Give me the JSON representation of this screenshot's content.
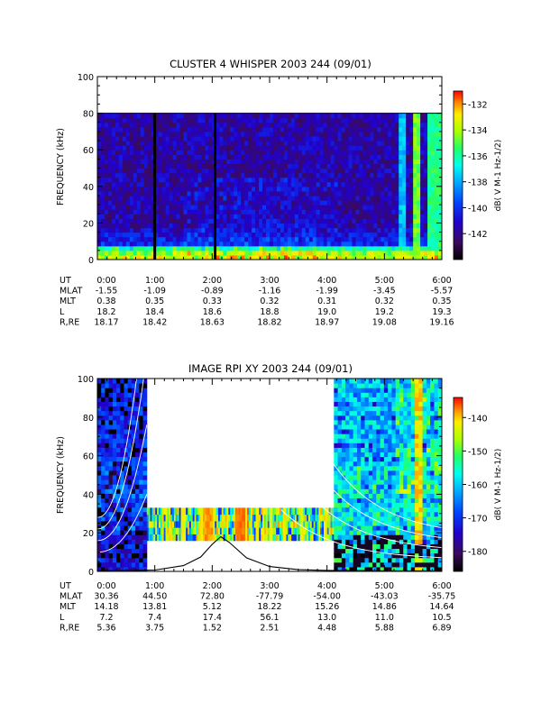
{
  "chart_data": [
    {
      "type": "heatmap",
      "title": "CLUSTER 4 WHISPER 2003 244 (09/01)",
      "ylabel": "FREQUENCY (kHz)",
      "ylim": [
        0,
        100
      ],
      "yticks": [
        "0",
        "20",
        "40",
        "60",
        "80",
        "100"
      ],
      "data_ylim": [
        0,
        80
      ],
      "xlim_hours": [
        0,
        6
      ],
      "colorbar": {
        "label": "dB( V M⁻¹ Hz⁻¹ᐟ²)",
        "label_plain": "dB( V M-1 Hz-1/2)",
        "range": [
          -144,
          -131
        ],
        "ticks": [
          "-132",
          "-134",
          "-136",
          "-138",
          "-140",
          "-142"
        ],
        "tick_values": [
          -132,
          -134,
          -136,
          -138,
          -140,
          -142
        ]
      },
      "ephemeris": {
        "rows": [
          {
            "name": "UT",
            "values": [
              "0:00",
              "1:00",
              "2:00",
              "3:00",
              "4:00",
              "5:00",
              "6:00"
            ]
          },
          {
            "name": "MLAT",
            "values": [
              "-1.55",
              "-1.09",
              "-0.89",
              "-1.16",
              "-1.99",
              "-3.45",
              "-5.57"
            ]
          },
          {
            "name": "MLT",
            "values": [
              "0.38",
              "0.35",
              "0.33",
              "0.32",
              "0.31",
              "0.32",
              "0.35"
            ]
          },
          {
            "name": "L",
            "values": [
              "18.2",
              "18.4",
              "18.6",
              "18.8",
              "19.0",
              "19.2",
              "19.3"
            ]
          },
          {
            "name": "R,RE",
            "values": [
              "18.17",
              "18.42",
              "18.63",
              "18.82",
              "18.97",
              "19.08",
              "19.16"
            ]
          }
        ]
      },
      "data_gaps_hours": [
        1.0,
        2.05
      ],
      "features": [
        {
          "start_hour": 5.55,
          "end_hour": 5.62,
          "intensity_db": -134
        },
        {
          "start_hour": 5.8,
          "end_hour": 5.86,
          "intensity_db": -135
        },
        {
          "start_hour": 5.3,
          "end_hour": 5.34,
          "intensity_db": -137
        },
        {
          "start_hour": 5.9,
          "end_hour": 6.0,
          "intensity_db": -135
        }
      ]
    },
    {
      "type": "heatmap",
      "title": "IMAGE RPI XY 2003 244 (09/01)",
      "ylabel": "FREQUENCY (kHz)",
      "ylim": [
        0,
        100
      ],
      "yticks": [
        "0",
        "20",
        "40",
        "60",
        "80",
        "100"
      ],
      "xlim_hours": [
        0,
        6
      ],
      "colorbar": {
        "label_plain": "dB( V M-1 Hz-1/2)",
        "range": [
          -186,
          -134
        ],
        "ticks": [
          "-140",
          "-150",
          "-160",
          "-170",
          "-180"
        ],
        "tick_values": [
          -140,
          -150,
          -160,
          -170,
          -180
        ]
      },
      "ephemeris": {
        "rows": [
          {
            "name": "UT",
            "values": [
              "0:00",
              "1:00",
              "2:00",
              "3:00",
              "4:00",
              "5:00",
              "6:00"
            ]
          },
          {
            "name": "MLAT",
            "values": [
              "30.36",
              "44.50",
              "72.80",
              "-77.79",
              "-54.00",
              "-43.03",
              "-35.75"
            ]
          },
          {
            "name": "MLT",
            "values": [
              "14.18",
              "13.81",
              "5.12",
              "18.22",
              "15.26",
              "14.86",
              "14.64"
            ]
          },
          {
            "name": "L",
            "values": [
              "7.2",
              "7.4",
              "17.4",
              "56.1",
              "13.0",
              "11.0",
              "10.5"
            ]
          },
          {
            "name": "R,RE",
            "values": [
              "5.36",
              "3.75",
              "1.52",
              "2.51",
              "4.48",
              "5.88",
              "6.89"
            ]
          }
        ]
      },
      "data_segments": [
        {
          "start_hour": 0.0,
          "end_hour": 0.86,
          "freq_range_khz": [
            0,
            100
          ]
        },
        {
          "start_hour": 0.86,
          "end_hour": 4.12,
          "freq_range_khz": [
            16,
            33
          ]
        },
        {
          "start_hour": 4.12,
          "end_hour": 6.0,
          "freq_range_khz": [
            0,
            100
          ]
        }
      ],
      "plasma_frequency_curve": {
        "x_hours": [
          0.0,
          0.5,
          1.0,
          1.5,
          1.8,
          2.0,
          2.15,
          2.3,
          2.6,
          3.0,
          3.5,
          4.0,
          4.5,
          5.0,
          6.0
        ],
        "freq_khz": [
          0.3,
          0.4,
          0.7,
          3.0,
          7.5,
          14.0,
          18.0,
          15.0,
          7.0,
          2.5,
          0.9,
          0.5,
          0.4,
          0.3,
          0.3
        ]
      }
    }
  ]
}
